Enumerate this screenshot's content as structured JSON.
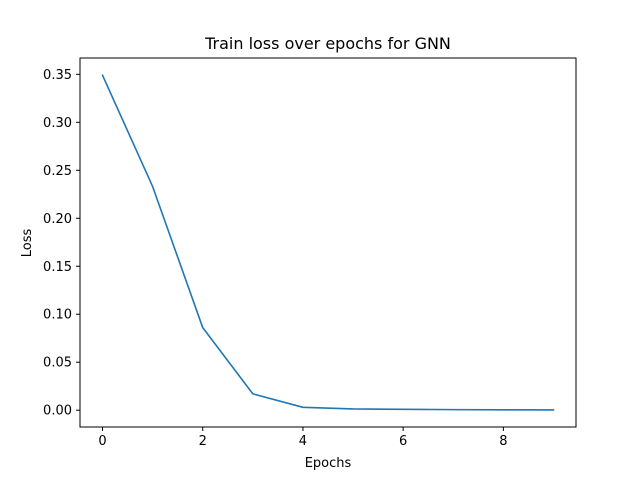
{
  "chart_data": {
    "type": "line",
    "title": "Train loss over epochs for GNN",
    "xlabel": "Epochs",
    "ylabel": "Loss",
    "xlim": [
      -0.45,
      9.45
    ],
    "ylim": [
      -0.0175,
      0.367
    ],
    "xticks": [
      0,
      2,
      4,
      6,
      8
    ],
    "xtick_labels": [
      "0",
      "2",
      "4",
      "6",
      "8"
    ],
    "yticks": [
      0.0,
      0.05,
      0.1,
      0.15,
      0.2,
      0.25,
      0.3,
      0.35
    ],
    "ytick_labels": [
      "0.00",
      "0.05",
      "0.10",
      "0.15",
      "0.20",
      "0.25",
      "0.30",
      "0.35"
    ],
    "grid": false,
    "legend": "none",
    "line_color": "#1f77b4",
    "series": [
      {
        "x": [
          0,
          1,
          2,
          3,
          4,
          5,
          6,
          7,
          8,
          9
        ],
        "values": [
          0.349,
          0.233,
          0.086,
          0.017,
          0.003,
          0.0013,
          0.0009,
          0.0006,
          0.0004,
          0.0003
        ]
      }
    ]
  }
}
